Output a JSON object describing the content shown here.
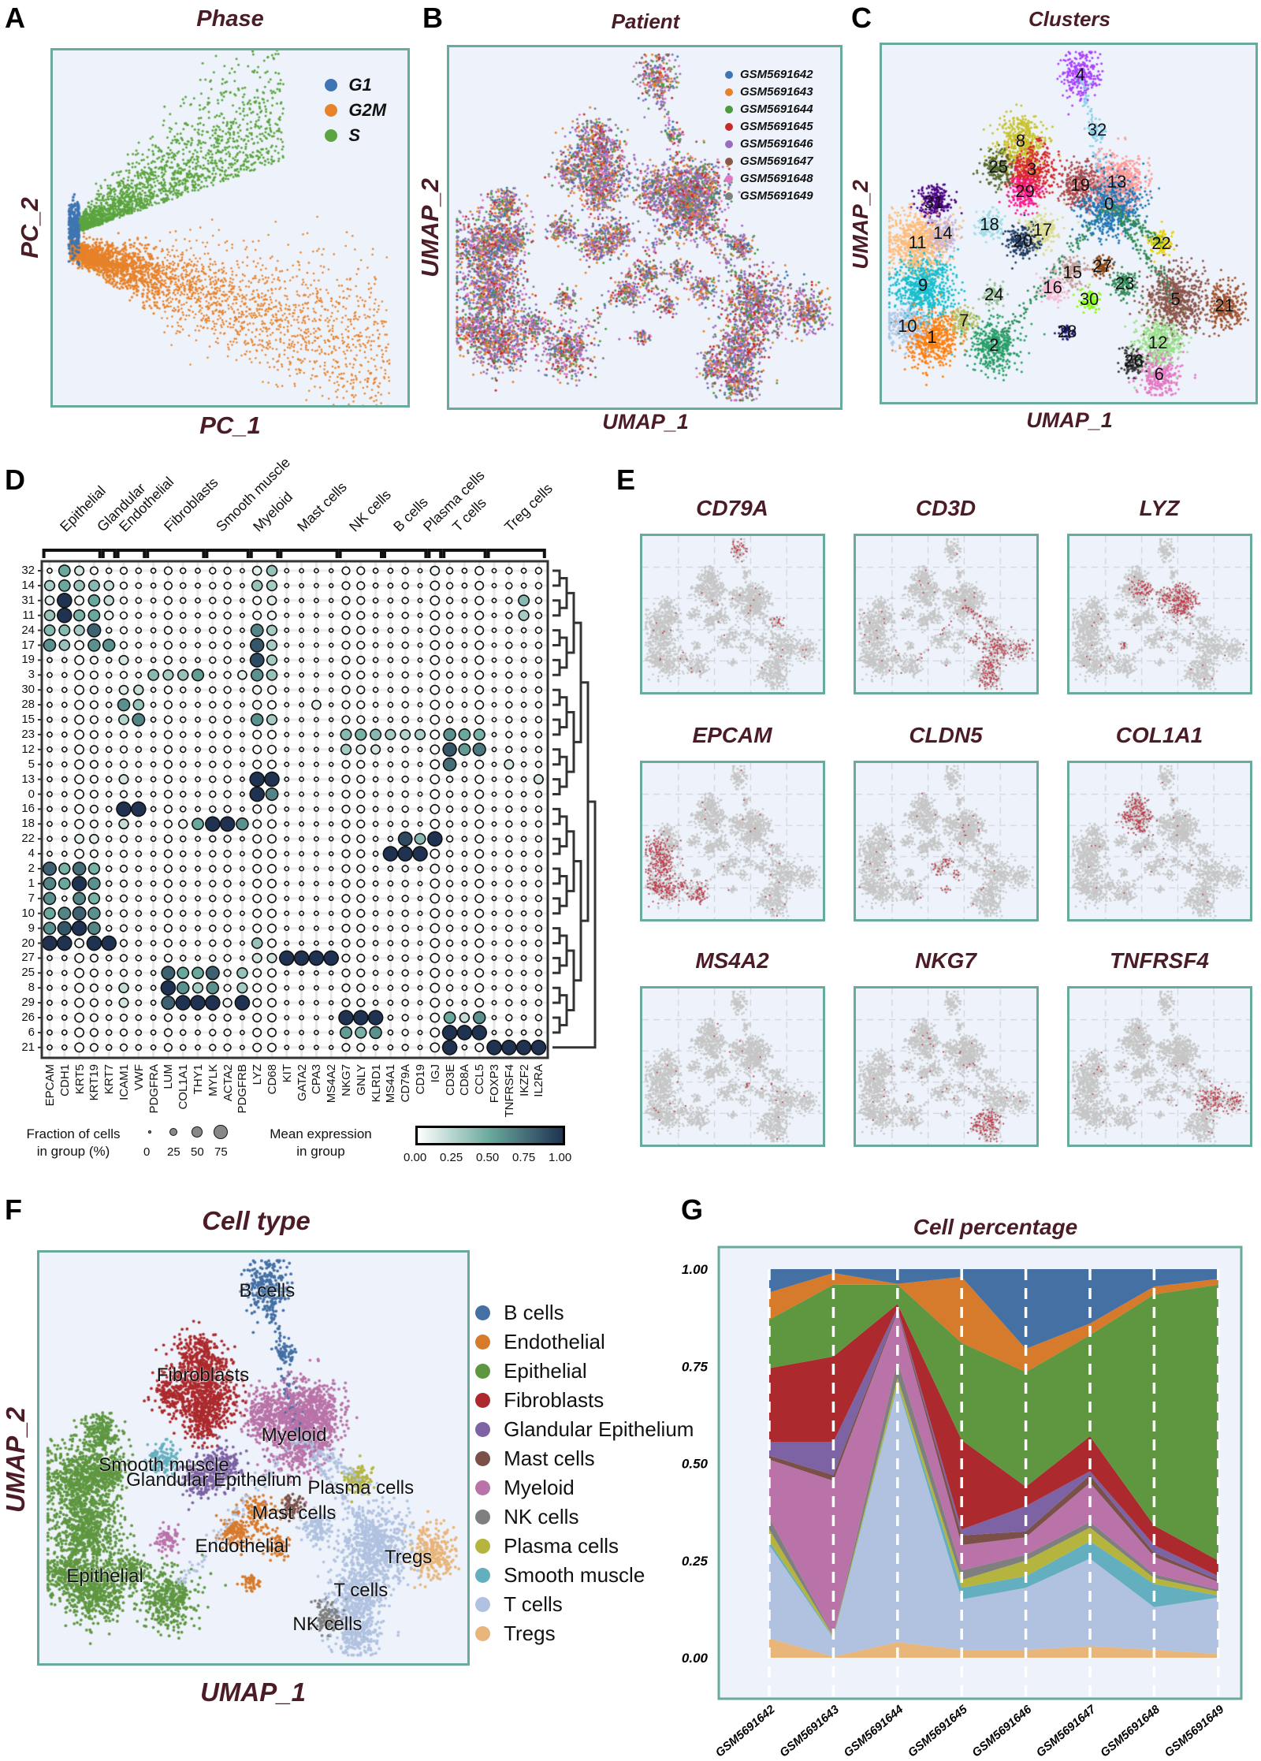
{
  "panel_A": {
    "letter": "A",
    "title": "Phase",
    "xlabel": "PC_1",
    "ylabel": "PC_2",
    "legend": [
      {
        "label": "G1",
        "color": "#3f75b2"
      },
      {
        "label": "G2M",
        "color": "#e7822a"
      },
      {
        "label": "S",
        "color": "#5ba43f"
      }
    ]
  },
  "panel_B": {
    "letter": "B",
    "title": "Patient",
    "xlabel": "UMAP_1",
    "ylabel": "UMAP_2",
    "legend": [
      {
        "label": "GSM5691642",
        "color": "#3f75b2"
      },
      {
        "label": "GSM5691643",
        "color": "#e7822a"
      },
      {
        "label": "GSM5691644",
        "color": "#4a9a3e"
      },
      {
        "label": "GSM5691645",
        "color": "#c82a2a"
      },
      {
        "label": "GSM5691646",
        "color": "#9a6cc0"
      },
      {
        "label": "GSM5691647",
        "color": "#8c564b"
      },
      {
        "label": "GSM5691648",
        "color": "#e377c2"
      },
      {
        "label": "GSM5691649",
        "color": "#7f7f7f"
      }
    ]
  },
  "panel_C": {
    "letter": "C",
    "title": "Clusters",
    "xlabel": "UMAP_1",
    "ylabel": "UMAP_2",
    "cluster_labels": [
      "4",
      "32",
      "8",
      "25",
      "3",
      "29",
      "19",
      "13",
      "0",
      "18",
      "17",
      "20",
      "22",
      "31",
      "14",
      "11",
      "9",
      "24",
      "15",
      "27",
      "16",
      "30",
      "23",
      "5",
      "21",
      "7",
      "10",
      "1",
      "2",
      "28",
      "12",
      "26",
      "6"
    ]
  },
  "panel_D": {
    "letter": "D",
    "legend": {
      "fraction_title_1": "Fraction of cells",
      "fraction_title_2": "in group (%)",
      "fraction_ticks": [
        "0",
        "25",
        "50",
        "75"
      ],
      "mean_title_1": "Mean expression",
      "mean_title_2": "in group",
      "colorbar_ticks": [
        "0.00",
        "0.25",
        "0.50",
        "0.75",
        "1.00"
      ]
    }
  },
  "panel_E": {
    "letter": "E",
    "genes": [
      "CD79A",
      "CD3D",
      "LYZ",
      "EPCAM",
      "CLDN5",
      "COL1A1",
      "MS4A2",
      "NKG7",
      "TNFRSF4"
    ],
    "highlight_color": "#c0394b",
    "background_color": "#c6c6c6"
  },
  "panel_F": {
    "letter": "F",
    "title": "Cell type",
    "xlabel": "UMAP_1",
    "ylabel": "UMAP_2",
    "legend": [
      {
        "label": "B cells",
        "color": "#4470a4"
      },
      {
        "label": "Endothelial",
        "color": "#d67a2c"
      },
      {
        "label": "Epithelial",
        "color": "#5f9741"
      },
      {
        "label": "Fibroblasts",
        "color": "#ac2a2d"
      },
      {
        "label": "Glandular Epithelium",
        "color": "#7d62a4"
      },
      {
        "label": "Mast cells",
        "color": "#7a5048"
      },
      {
        "label": "Myeloid",
        "color": "#b973a8"
      },
      {
        "label": "NK cells",
        "color": "#7f7f7f"
      },
      {
        "label": "Plasma cells",
        "color": "#b4b43e"
      },
      {
        "label": "Smooth muscle",
        "color": "#64afbf"
      },
      {
        "label": "T cells",
        "color": "#b0c2e0"
      },
      {
        "label": "Tregs",
        "color": "#e8b57a"
      }
    ],
    "map_labels": [
      "B cells",
      "Fibroblasts",
      "Myeloid",
      "Smooth muscle",
      "Glandular Epithelium",
      "Plasma cells",
      "Mast cells",
      "Endothelial",
      "Tregs",
      "Epithelial",
      "T cells",
      "NK cells"
    ]
  },
  "panel_G": {
    "letter": "G"
  },
  "chart_data": [
    {
      "type": "area",
      "stacked": true,
      "title": "Cell percentage",
      "xlabel": "",
      "ylabel": "",
      "ylim": [
        0,
        1
      ],
      "yticks": [
        "0.00",
        "0.25",
        "0.50",
        "0.75",
        "1.00"
      ],
      "categories": [
        "GSM5691642",
        "GSM5691643",
        "GSM5691644",
        "GSM5691645",
        "GSM5691646",
        "GSM5691647",
        "GSM5691648",
        "GSM5691649"
      ],
      "series": [
        {
          "name": "Tregs",
          "color": "#e8b57a",
          "values": [
            0.05,
            0.003,
            0.04,
            0.02,
            0.02,
            0.03,
            0.02,
            0.01
          ]
        },
        {
          "name": "T cells",
          "color": "#b0c2e0",
          "values": [
            0.24,
            0.047,
            0.66,
            0.13,
            0.16,
            0.225,
            0.11,
            0.145
          ]
        },
        {
          "name": "Smooth muscle",
          "color": "#64afbf",
          "values": [
            0.01,
            0.002,
            0.005,
            0.03,
            0.03,
            0.045,
            0.06,
            0.005
          ]
        },
        {
          "name": "Plasma cells",
          "color": "#b4b43e",
          "values": [
            0.03,
            0.003,
            0.015,
            0.02,
            0.04,
            0.035,
            0.015,
            0.01
          ]
        },
        {
          "name": "NK cells",
          "color": "#7f7f7f",
          "values": [
            0.03,
            0.002,
            0.045,
            0.025,
            0.015,
            0.015,
            0.01,
            0.005
          ]
        },
        {
          "name": "Myeloid",
          "color": "#b973a8",
          "values": [
            0.15,
            0.398,
            0.125,
            0.065,
            0.045,
            0.1,
            0.045,
            0.02
          ]
        },
        {
          "name": "Mast cells",
          "color": "#7a5048",
          "values": [
            0.01,
            0.015,
            0.005,
            0.025,
            0.015,
            0.02,
            0.01,
            0.005
          ]
        },
        {
          "name": "Glandular Epithelium",
          "color": "#7d62a4",
          "values": [
            0.035,
            0.085,
            0.005,
            0.015,
            0.065,
            0.01,
            0.02,
            0.01
          ]
        },
        {
          "name": "Fibroblasts",
          "color": "#ac2a2d",
          "values": [
            0.19,
            0.22,
            0.01,
            0.23,
            0.05,
            0.09,
            0.05,
            0.04
          ]
        },
        {
          "name": "Epithelial",
          "color": "#5f9741",
          "values": [
            0.125,
            0.185,
            0.05,
            0.25,
            0.295,
            0.26,
            0.595,
            0.71
          ]
        },
        {
          "name": "Endothelial",
          "color": "#d67a2c",
          "values": [
            0.07,
            0.03,
            0.002,
            0.17,
            0.06,
            0.03,
            0.02,
            0.015
          ]
        },
        {
          "name": "B cells",
          "color": "#4470a4",
          "values": [
            0.06,
            0.01,
            0.038,
            0.02,
            0.205,
            0.14,
            0.045,
            0.025
          ]
        }
      ]
    },
    {
      "type": "heatmap",
      "subtype": "dotplot",
      "rows": [
        "32",
        "14",
        "31",
        "11",
        "24",
        "17",
        "19",
        "3",
        "30",
        "28",
        "15",
        "23",
        "12",
        "5",
        "13",
        "0",
        "16",
        "18",
        "22",
        "4",
        "2",
        "1",
        "7",
        "10",
        "9",
        "20",
        "27",
        "25",
        "8",
        "29",
        "26",
        "6",
        "21"
      ],
      "genes": [
        "EPCAM",
        "CDH1",
        "KRT5",
        "KRT19",
        "KRT7",
        "ICAM1",
        "VWF",
        "PDGFRA",
        "LUM",
        "COL1A1",
        "THY1",
        "MYLK",
        "ACTA2",
        "PDGFRB",
        "LYZ",
        "CD68",
        "KIT",
        "GATA2",
        "CPA3",
        "MS4A2",
        "NKG7",
        "GNLY",
        "KLRD1",
        "MS4A1",
        "CD79A",
        "CD19",
        "IGJ",
        "CD3E",
        "CD8A",
        "CCL5",
        "FOXP3",
        "TNFRSF4",
        "IKZF2",
        "IL2RA"
      ],
      "categories": [
        {
          "label": "Epithelial",
          "genes": [
            "EPCAM",
            "KRT19"
          ]
        },
        {
          "label": "Glandular",
          "genes": [
            "KRT7",
            "KRT7"
          ]
        },
        {
          "label": "Endothelial",
          "genes": [
            "ICAM1",
            "VWF"
          ]
        },
        {
          "label": "Fibroblasts",
          "genes": [
            "PDGFRA",
            "THY1"
          ]
        },
        {
          "label": "Smooth muscle",
          "genes": [
            "MYLK",
            "PDGFRB"
          ]
        },
        {
          "label": "Myeloid",
          "genes": [
            "LYZ",
            "CD68"
          ]
        },
        {
          "label": "Mast cells",
          "genes": [
            "KIT",
            "MS4A2"
          ]
        },
        {
          "label": "NK cells",
          "genes": [
            "NKG7",
            "KLRD1"
          ]
        },
        {
          "label": "B cells",
          "genes": [
            "MS4A1",
            "CD19"
          ]
        },
        {
          "label": "Plasma cells",
          "genes": [
            "IGJ",
            "IGJ"
          ]
        },
        {
          "label": "T cells",
          "genes": [
            "CD3E",
            "CCL5"
          ]
        },
        {
          "label": "Treg cells",
          "genes": [
            "FOXP3",
            "IL2RA"
          ]
        }
      ],
      "base_fraction": [
        0.1,
        0.1,
        0.4,
        0.3,
        0.15,
        0.25,
        0.15,
        0.1,
        0.3,
        0.15,
        0.1,
        0.2,
        0.25,
        0.05,
        0.35,
        0.35,
        0.05,
        0.05,
        0.05,
        0.03,
        0.3,
        0.3,
        0.1,
        0.1,
        0.2,
        0.05,
        0.4,
        0.2,
        0.1,
        0.35,
        0.05,
        0.2,
        0.1,
        0.2
      ],
      "mean_expression": {
        "32": {
          "CDH1": 0.5,
          "KRT5": 0.15,
          "LYZ": 0.1,
          "CD68": 0.35,
          "IGJ": 0.05
        },
        "14": {
          "EPCAM": 0.3,
          "CDH1": 0.5,
          "KRT5": 0.35,
          "KRT19": 0.4,
          "KRT7": 0.2,
          "LYZ": 0.35,
          "CD68": 0.3
        },
        "31": {
          "EPCAM": 0.1,
          "CDH1": 1,
          "KRT5": 0.05,
          "KRT19": 0.5,
          "KRT7": 0.2,
          "CD68": 0.1,
          "IKZF2": 0.4
        },
        "11": {
          "EPCAM": 0.35,
          "CDH1": 1,
          "KRT5": 0.45,
          "KRT19": 0.5,
          "KRT7": 0.05,
          "CD68": 0.05,
          "IKZF2": 0.3
        },
        "24": {
          "EPCAM": 0.4,
          "CDH1": 0.4,
          "KRT5": 0.3,
          "KRT19": 0.8,
          "LYZ": 0.65,
          "CD68": 0.3
        },
        "17": {
          "EPCAM": 0.6,
          "CDH1": 0.35,
          "KRT19": 0.6,
          "KRT7": 0.6,
          "LYZ": 0.85,
          "CD68": 0.3
        },
        "19": {
          "ICAM1": 0.15,
          "LYZ": 0.9,
          "CD68": 0.3
        },
        "3": {
          "PDGFRA": 0.4,
          "LUM": 0.3,
          "COL1A1": 0.35,
          "THY1": 0.55,
          "PDGFRB": 0.1,
          "LYZ": 0.6,
          "CD68": 0.35
        },
        "30": {
          "ICAM1": 0.1,
          "VWF": 0.2,
          "LYZ": 0.05
        },
        "28": {
          "ICAM1": 0.6,
          "VWF": 0.35,
          "CPA3": 0.1,
          "LYZ": 0.05
        },
        "15": {
          "ICAM1": 0.25,
          "VWF": 0.65,
          "LYZ": 0.6,
          "CD68": 0.3
        },
        "23": {
          "NKG7": 0.4,
          "GNLY": 0.45,
          "KLRD1": 0.4,
          "MS4A1": 0.3,
          "CD79A": 0.25,
          "CD19": 0.3,
          "CD3E": 0.6,
          "CD8A": 0.5,
          "CCL5": 0.45
        },
        "12": {
          "NKG7": 0.3,
          "GNLY": 0.1,
          "KLRD1": 0.15,
          "CD3E": 0.85,
          "CD8A": 0.55,
          "CCL5": 0.7
        },
        "5": {
          "CD3E": 0.75,
          "TNFRSF4": 0.15
        },
        "13": {
          "ICAM1": 0.15,
          "LYZ": 1,
          "CD68": 1,
          "IL2RA": 0.15
        },
        "0": {
          "LYZ": 1,
          "CD68": 0.65
        },
        "16": {
          "ICAM1": 1,
          "VWF": 1
        },
        "18": {
          "ICAM1": 0.2,
          "COL1A1": 0.05,
          "THY1": 0.5,
          "MYLK": 1,
          "ACTA2": 1,
          "PDGFRB": 0.6
        },
        "22": {
          "KRT5": 0.1,
          "KRT19": 0.1,
          "CD79A": 0.9,
          "CD19": 0.4,
          "IGJ": 1
        },
        "4": {
          "MS4A1": 1,
          "CD79A": 1,
          "CD19": 1
        },
        "2": {
          "EPCAM": 0.8,
          "CDH1": 0.45,
          "KRT5": 0.75,
          "KRT19": 0.45
        },
        "1": {
          "EPCAM": 0.65,
          "CDH1": 0.5,
          "KRT5": 1,
          "KRT19": 0.6
        },
        "7": {
          "EPCAM": 0.6,
          "KRT5": 0.65,
          "KRT19": 0.45
        },
        "10": {
          "EPCAM": 0.5,
          "CDH1": 0.65,
          "KRT5": 0.8,
          "KRT19": 0.6
        },
        "9": {
          "EPCAM": 0.6,
          "CDH1": 0.85,
          "KRT5": 1,
          "KRT19": 0.65
        },
        "20": {
          "EPCAM": 1,
          "CDH1": 1,
          "KRT5": 0.05,
          "KRT19": 1,
          "KRT7": 1,
          "LYZ": 0.35
        },
        "27": {
          "LYZ": 0.15,
          "CD68": 0.15,
          "KIT": 1,
          "GATA2": 1,
          "CPA3": 1,
          "MS4A2": 1
        },
        "25": {
          "LUM": 0.8,
          "COL1A1": 0.5,
          "THY1": 0.5,
          "MYLK": 0.8,
          "PDGFRB": 0.35
        },
        "8": {
          "ICAM1": 0.2,
          "LUM": 1,
          "COL1A1": 0.6,
          "THY1": 0.3,
          "MYLK": 0.6,
          "PDGFRB": 0.3
        },
        "29": {
          "ICAM1": 0.15,
          "LUM": 0.8,
          "COL1A1": 1,
          "THY1": 1,
          "MYLK": 1,
          "ACTA2": 0.05,
          "PDGFRB": 1
        },
        "26": {
          "NKG7": 1,
          "GNLY": 1,
          "KLRD1": 1,
          "CD3E": 0.5,
          "CD8A": 0.2,
          "CCL5": 0.6
        },
        "6": {
          "NKG7": 0.55,
          "GNLY": 0.45,
          "KLRD1": 0.6,
          "CD3E": 1,
          "CD8A": 1,
          "CCL5": 1
        },
        "21": {
          "CD3E": 1,
          "FOXP3": 1,
          "TNFRSF4": 1,
          "IKZF2": 1,
          "IL2RA": 1
        }
      },
      "colorscale": [
        "#ffffff",
        "#69a89c",
        "#1f3252"
      ]
    }
  ]
}
